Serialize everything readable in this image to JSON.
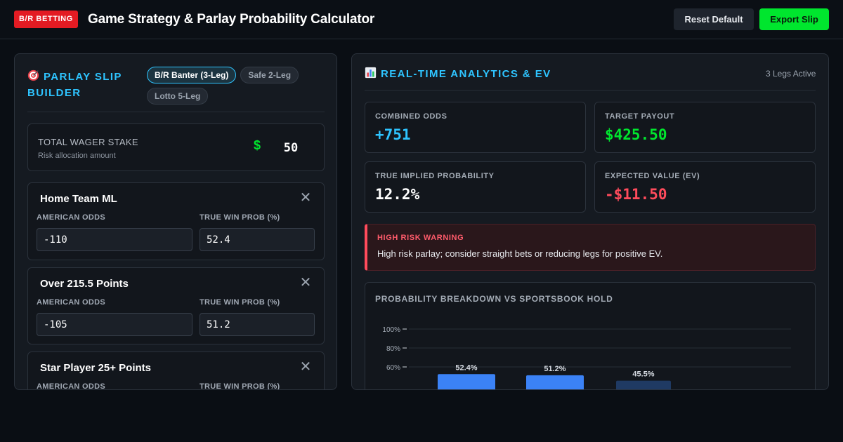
{
  "header": {
    "brand": "B/R BETTING",
    "title": "Game Strategy & Parlay Probability Calculator",
    "reset_label": "Reset Default",
    "export_label": "Export Slip"
  },
  "builder": {
    "icon": "target-icon",
    "title": "PARLAY SLIP BUILDER",
    "presets": [
      {
        "label": "B/R Banter (3-Leg)",
        "active": true
      },
      {
        "label": "Safe 2-Leg",
        "active": false
      },
      {
        "label": "Lotto 5-Leg",
        "active": false
      }
    ],
    "stake": {
      "label": "TOTAL WAGER STAKE",
      "sublabel": "Risk allocation amount",
      "currency": "$",
      "value": "50"
    },
    "legs": [
      {
        "name": "Home Team ML",
        "odds_label": "AMERICAN ODDS",
        "odds": "-110",
        "prob_label": "TRUE WIN PROB (%)",
        "prob": "52.4"
      },
      {
        "name": "Over 215.5 Points",
        "odds_label": "AMERICAN ODDS",
        "odds": "-105",
        "prob_label": "TRUE WIN PROB (%)",
        "prob": "51.2"
      },
      {
        "name": "Star Player 25+ Points",
        "odds_label": "AMERICAN ODDS",
        "odds": "",
        "prob_label": "TRUE WIN PROB (%)",
        "prob": ""
      }
    ]
  },
  "analytics": {
    "icon": "bar-chart-icon",
    "title": "REAL-TIME ANALYTICS & EV",
    "legs_active": "3 Legs Active",
    "combined_odds": {
      "label": "COMBINED ODDS",
      "value": "+751"
    },
    "target_payout": {
      "label": "TARGET PAYOUT",
      "value": "$425.50"
    },
    "implied_prob": {
      "label": "TRUE IMPLIED PROBABILITY",
      "value": "12.2%"
    },
    "ev": {
      "label": "EXPECTED VALUE (EV)",
      "value": "-$11.50"
    },
    "warning": {
      "title": "HIGH RISK WARNING",
      "text": "High risk parlay; consider straight bets or reducing legs for positive EV."
    }
  },
  "colors": {
    "accent": "#2ec4ff",
    "positive": "#00e62e",
    "negative": "#ff4b5c",
    "bar": "#3b82f6",
    "brand": "#e31b23"
  },
  "chart_data": {
    "type": "bar",
    "title": "PROBABILITY BREAKDOWN VS SPORTSBOOK HOLD",
    "y_ticks": [
      "100%",
      "80%",
      "60%"
    ],
    "ylim": [
      0,
      100
    ],
    "values": [
      52.4,
      51.2,
      45.5
    ],
    "value_labels": [
      "52.4%",
      "51.2%",
      "45.5%"
    ],
    "grid": true
  }
}
